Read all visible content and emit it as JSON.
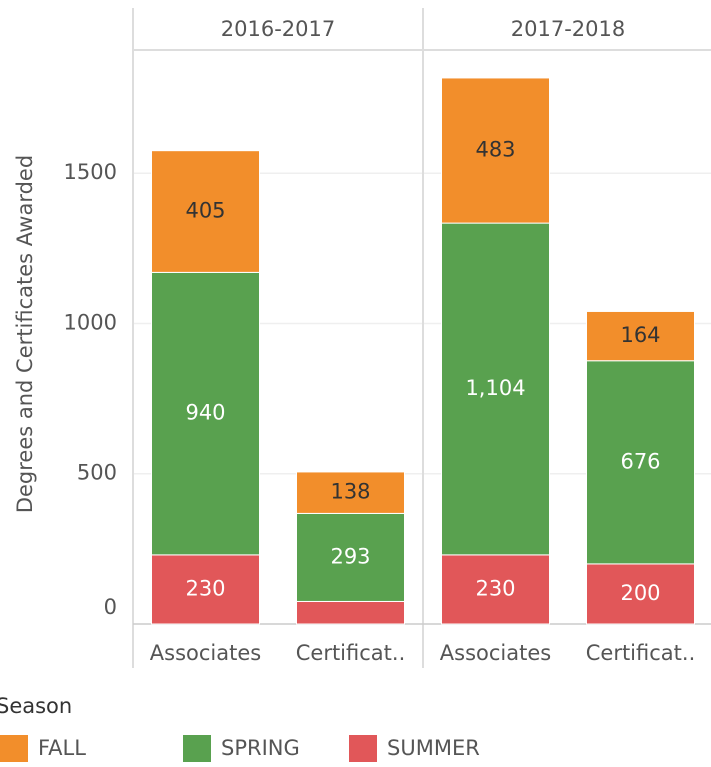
{
  "chart_data": {
    "type": "bar",
    "stacked": true,
    "panels": [
      "2016-2017",
      "2017-2018"
    ],
    "categories": [
      "Associates",
      "Certificat..",
      "Associates",
      "Certificat.."
    ],
    "ylabel": "Degrees and Certificates Awarded",
    "ylim": [
      0,
      1910
    ],
    "yticks": [
      0,
      500,
      1000,
      1500
    ],
    "grid": true,
    "legend_title": "Season",
    "series": [
      {
        "name": "FALL",
        "color": "#f28e2b",
        "values": [
          405,
          138,
          483,
          164
        ],
        "value_labels": [
          "405",
          "138",
          "483",
          "164"
        ]
      },
      {
        "name": "SPRING",
        "color": "#59a14f",
        "values": [
          940,
          293,
          1104,
          676
        ],
        "value_labels": [
          "940",
          "293",
          "1,104",
          "676"
        ]
      },
      {
        "name": "SUMMER",
        "color": "#e15759",
        "values": [
          230,
          75,
          230,
          200
        ],
        "value_labels": [
          "230",
          null,
          "230",
          "200"
        ]
      }
    ]
  }
}
